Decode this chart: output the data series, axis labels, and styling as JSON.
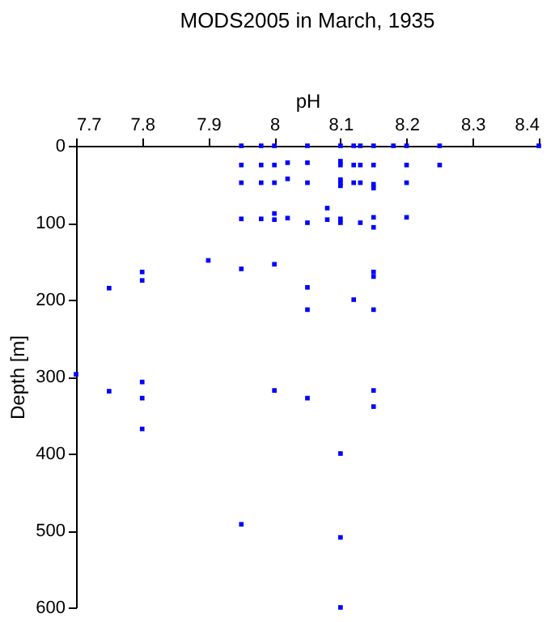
{
  "chart_data": {
    "type": "scatter",
    "title": "MODS2005 in March, 1935",
    "xlabel": "pH",
    "ylabel": "Depth [m]",
    "x": [
      7.95,
      7.98,
      8.0,
      8.05,
      8.1,
      8.12,
      8.13,
      8.15,
      8.18,
      8.2,
      8.25,
      8.4,
      7.95,
      7.98,
      8.0,
      8.02,
      8.05,
      8.1,
      8.1,
      8.12,
      8.13,
      8.15,
      8.2,
      8.25,
      7.95,
      7.98,
      8.0,
      8.02,
      8.05,
      8.1,
      8.1,
      8.1,
      8.12,
      8.13,
      8.15,
      8.15,
      8.2,
      7.95,
      7.98,
      8.0,
      8.0,
      8.02,
      8.05,
      8.08,
      8.08,
      8.1,
      8.1,
      8.13,
      8.15,
      8.15,
      8.2,
      7.75,
      7.8,
      7.8,
      7.9,
      7.95,
      8.0,
      8.05,
      8.05,
      8.12,
      8.15,
      8.15,
      8.15,
      7.7,
      7.75,
      7.8,
      7.8,
      7.8,
      8.0,
      8.05,
      8.15,
      8.15,
      8.1,
      7.95,
      8.1,
      8.1
    ],
    "series": [
      {
        "color": "#0000ff",
        "values": [
          0,
          0,
          0,
          0,
          0,
          0,
          0,
          0,
          0,
          0,
          0,
          0,
          25,
          25,
          25,
          22,
          22,
          20,
          25,
          25,
          25,
          25,
          25,
          25,
          48,
          48,
          48,
          43,
          48,
          44,
          48,
          52,
          48,
          48,
          50,
          55,
          48,
          95,
          95,
          88,
          96,
          94,
          100,
          81,
          96,
          95,
          100,
          100,
          93,
          106,
          93,
          185,
          164,
          175,
          149,
          160,
          154,
          184,
          213,
          200,
          164,
          170,
          213,
          297,
          319,
          307,
          328,
          368,
          318,
          328,
          318,
          339,
          400,
          492,
          509,
          600
        ]
      }
    ],
    "xlim": [
      7.7,
      8.4
    ],
    "xticks": [
      7.7,
      7.8,
      7.9,
      8,
      8.1,
      8.2,
      8.3,
      8.4
    ],
    "ylim": [
      600,
      0
    ],
    "yticks": [
      0,
      100,
      200,
      300,
      400,
      500,
      600
    ],
    "marker": "square",
    "grid": false,
    "legend": false
  }
}
